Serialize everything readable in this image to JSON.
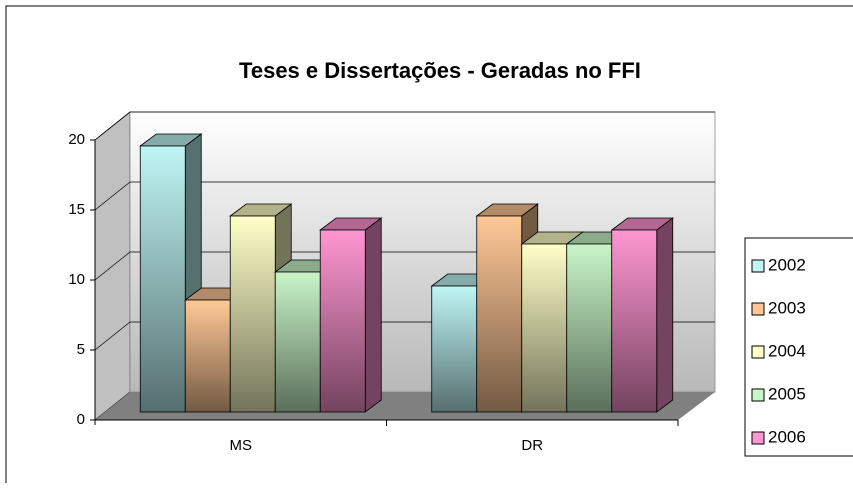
{
  "chart_data": {
    "type": "bar3d",
    "title": "Teses e Dissertações - Geradas no FFI",
    "categories": [
      "MS",
      "DR"
    ],
    "series": [
      {
        "name": "2002",
        "color": "#bff5f5",
        "values": [
          19,
          9
        ]
      },
      {
        "name": "2003",
        "color": "#ffc896",
        "values": [
          8,
          14
        ]
      },
      {
        "name": "2004",
        "color": "#ffffc8",
        "values": [
          14,
          12
        ]
      },
      {
        "name": "2005",
        "color": "#c8f5c8",
        "values": [
          10,
          12
        ]
      },
      {
        "name": "2006",
        "color": "#ff96d2",
        "values": [
          13,
          13
        ]
      }
    ],
    "ylim": [
      0,
      20
    ],
    "yticks": [
      0,
      5,
      10,
      15,
      20
    ],
    "grid": true,
    "legend": "right"
  }
}
